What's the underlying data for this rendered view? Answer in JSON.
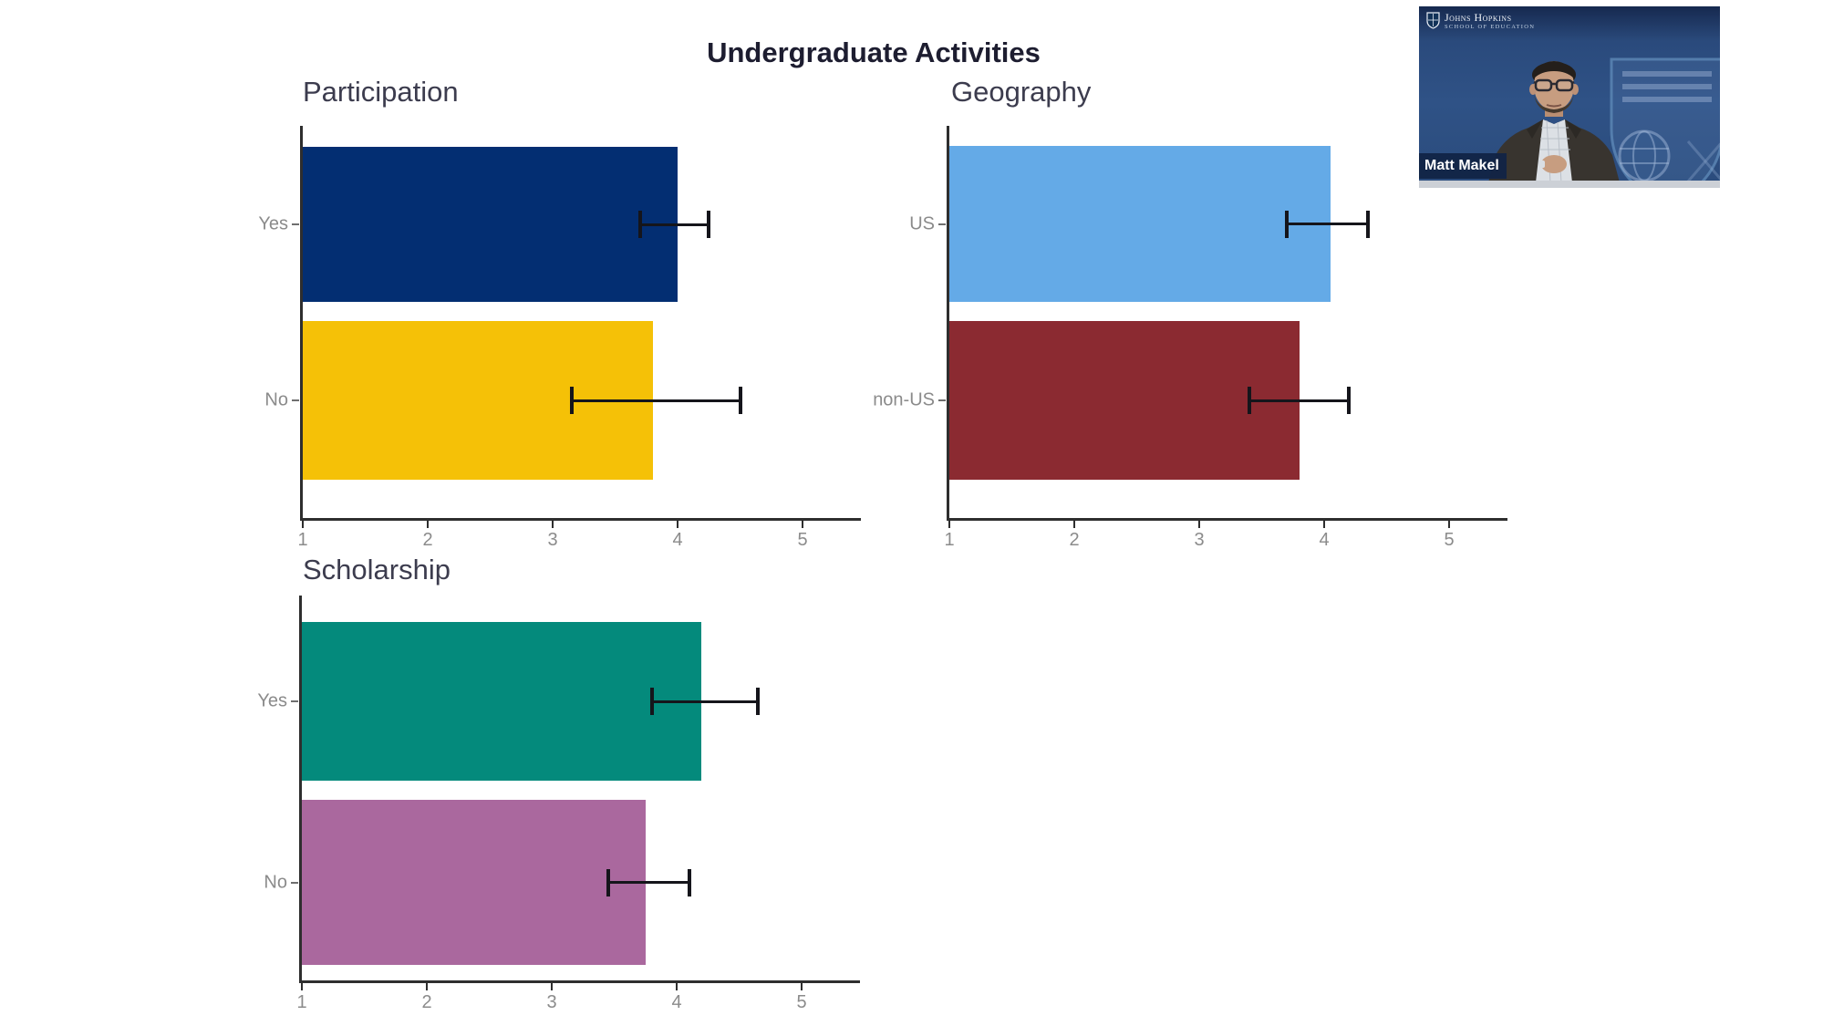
{
  "main_title": "Undergraduate Activities",
  "chart_data": [
    {
      "type": "bar",
      "orientation": "horizontal",
      "title": "Participation",
      "categories": [
        "Yes",
        "No"
      ],
      "values": [
        4.0,
        3.8
      ],
      "ci_low": [
        3.7,
        3.15
      ],
      "ci_high": [
        4.25,
        4.5
      ],
      "bar_colors": [
        "#032e72",
        "#f5c107"
      ],
      "xticks": [
        "1",
        "2",
        "3",
        "4",
        "5"
      ],
      "xlim": [
        1,
        5.47
      ],
      "grid": false,
      "legend": "none"
    },
    {
      "type": "bar",
      "orientation": "horizontal",
      "title": "Geography",
      "categories": [
        "US",
        "non-US"
      ],
      "values": [
        4.05,
        3.8
      ],
      "ci_low": [
        3.7,
        3.4
      ],
      "ci_high": [
        4.35,
        4.2
      ],
      "bar_colors": [
        "#64aae7",
        "#8b2a31"
      ],
      "xticks": [
        "1",
        "2",
        "3",
        "4",
        "5"
      ],
      "xlim": [
        1,
        5.47
      ],
      "grid": false,
      "legend": "none"
    },
    {
      "type": "bar",
      "orientation": "horizontal",
      "title": "Scholarship",
      "categories": [
        "Yes",
        "No"
      ],
      "values": [
        4.2,
        3.75
      ],
      "ci_low": [
        3.8,
        3.45
      ],
      "ci_high": [
        4.65,
        4.1
      ],
      "bar_colors": [
        "#048a7c",
        "#aa689e"
      ],
      "xticks": [
        "1",
        "2",
        "3",
        "4",
        "5"
      ],
      "xlim": [
        1,
        5.47
      ],
      "grid": false,
      "legend": "none"
    }
  ],
  "axis_style": {
    "line_color": "#2e2e2e",
    "tick_label_color": "#8b8b8b",
    "error_bar_color": "#15151b"
  },
  "webcam": {
    "speaker_name": "Matt Makel",
    "logo_line1": "Johns Hopkins",
    "logo_line2": "School of Education",
    "bg_color": "#2c4d7e",
    "name_tag_color": "#112446"
  }
}
